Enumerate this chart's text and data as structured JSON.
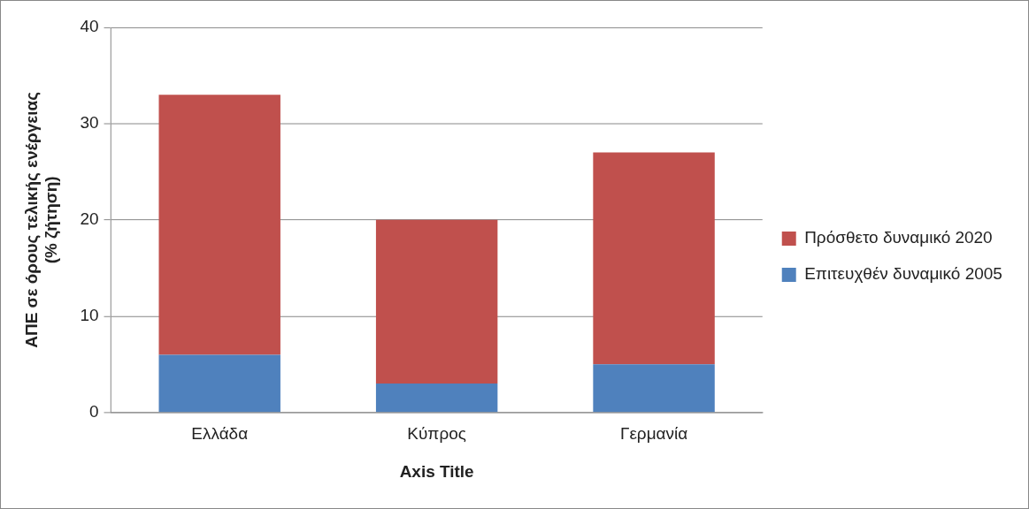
{
  "chart_data": {
    "type": "bar",
    "stacked": true,
    "xlabel": "Axis Title",
    "ylabel": "ΑΠΕ σε όρους τελικής ενέργειας\n(% ζήτηση)",
    "categories": [
      "Ελλάδα",
      "Κύπρος",
      "Γερμανία"
    ],
    "series": [
      {
        "name": "Επιτευχθέν δυναμικό 2005",
        "color": "#4f81bd",
        "values": [
          6,
          3,
          5
        ]
      },
      {
        "name": "Πρόσθετο δυναμικό 2020",
        "color": "#c0504d",
        "values": [
          27,
          17,
          22
        ]
      }
    ],
    "ylim": [
      0,
      40
    ],
    "yticks": [
      0,
      10,
      20,
      30,
      40
    ],
    "grid": "y",
    "legend": "right"
  }
}
